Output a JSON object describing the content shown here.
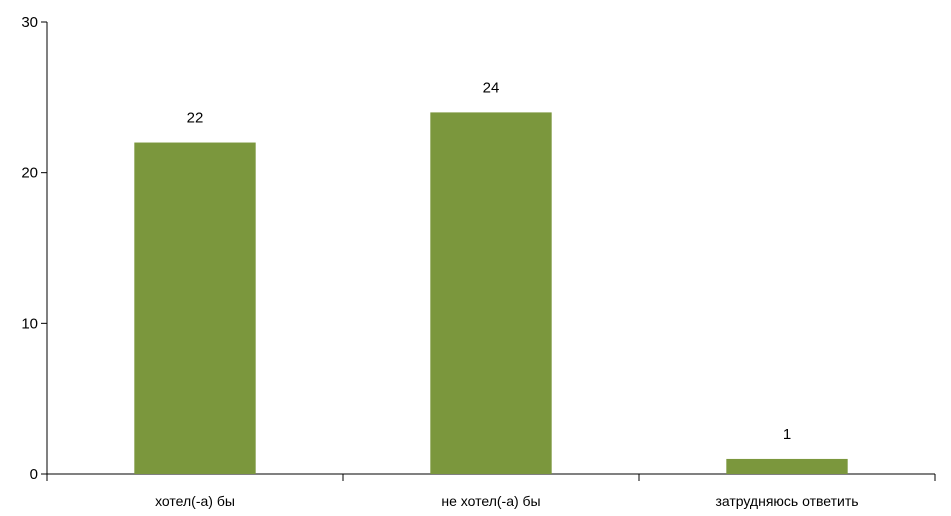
{
  "chart_data": {
    "type": "bar",
    "categories": [
      "хотел(-а) бы",
      "не хотел(-а) бы",
      "затрудняюсь ответить"
    ],
    "values": [
      22,
      24,
      1
    ],
    "data_labels": [
      "22",
      "24",
      "1"
    ],
    "title": "",
    "xlabel": "",
    "ylabel": "",
    "ylim": [
      0,
      30
    ],
    "yticks": [
      "0",
      "10",
      "20",
      "30"
    ],
    "grid": false,
    "legend": "none",
    "bar_color": "#7b973d"
  }
}
